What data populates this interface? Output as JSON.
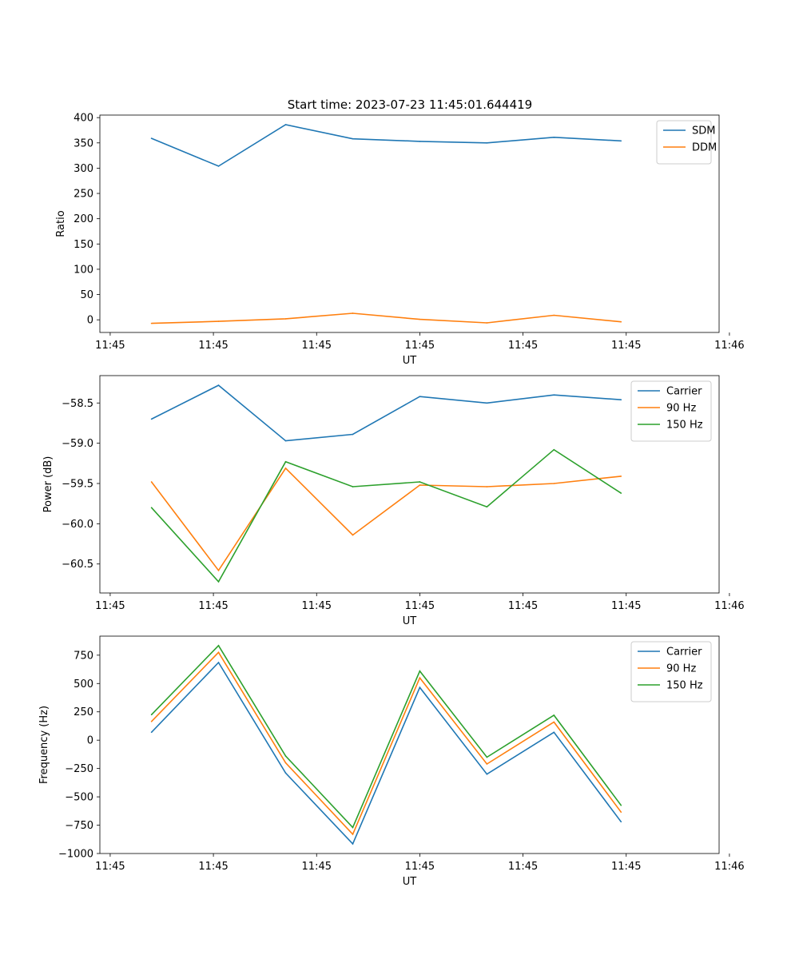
{
  "figure_title": "Start time: 2023-07-23 11:45:01.644419",
  "colors": {
    "blue": "#1f77b4",
    "orange": "#ff7f0e",
    "green": "#2ca02c"
  },
  "chart_data": [
    {
      "type": "line",
      "xlabel": "UT",
      "ylabel": "Ratio",
      "x": [
        0.4,
        0.53,
        0.66,
        0.79,
        0.92,
        1.05,
        1.18,
        1.31
      ],
      "xlim": [
        0.3,
        1.5
      ],
      "xticks": [
        0.32,
        0.52,
        0.72,
        0.92,
        1.12,
        1.32,
        1.52
      ],
      "xtick_labels": [
        "11:45",
        "11:45",
        "11:45",
        "11:45",
        "11:45",
        "11:45",
        "11:46"
      ],
      "ylim": [
        -25,
        405
      ],
      "yticks": [
        0,
        50,
        100,
        150,
        200,
        250,
        300,
        350,
        400
      ],
      "ytick_labels": [
        "0",
        "50",
        "100",
        "150",
        "200",
        "250",
        "300",
        "350",
        "400"
      ],
      "legend": "top-right",
      "series": [
        {
          "name": "SDM",
          "color": "#1f77b4",
          "values": [
            359,
            304,
            386,
            358,
            353,
            350,
            361,
            354
          ]
        },
        {
          "name": "DDM",
          "color": "#ff7f0e",
          "values": [
            -7,
            -3,
            2,
            13,
            1,
            -6,
            9,
            -4
          ]
        }
      ]
    },
    {
      "type": "line",
      "xlabel": "UT",
      "ylabel": "Power (dB)",
      "x": [
        0.4,
        0.53,
        0.66,
        0.79,
        0.92,
        1.05,
        1.18,
        1.31
      ],
      "xlim": [
        0.3,
        1.5
      ],
      "xticks": [
        0.32,
        0.52,
        0.72,
        0.92,
        1.12,
        1.32,
        1.52
      ],
      "xtick_labels": [
        "11:45",
        "11:45",
        "11:45",
        "11:45",
        "11:45",
        "11:45",
        "11:46"
      ],
      "ylim": [
        -60.86,
        -58.16
      ],
      "yticks": [
        -60.5,
        -60.0,
        -59.5,
        -59.0,
        -58.5
      ],
      "ytick_labels": [
        "−60.5",
        "−60.0",
        "−59.5",
        "−59.0",
        "−58.5"
      ],
      "legend": "top-right",
      "series": [
        {
          "name": "Carrier",
          "color": "#1f77b4",
          "values": [
            -58.7,
            -58.28,
            -58.97,
            -58.89,
            -58.42,
            -58.5,
            -58.4,
            -58.46
          ]
        },
        {
          "name": "90 Hz",
          "color": "#ff7f0e",
          "values": [
            -59.48,
            -60.58,
            -59.31,
            -60.14,
            -59.52,
            -59.54,
            -59.5,
            -59.41
          ]
        },
        {
          "name": "150 Hz",
          "color": "#2ca02c",
          "values": [
            -59.8,
            -60.72,
            -59.23,
            -59.54,
            -59.48,
            -59.79,
            -59.08,
            -59.62
          ]
        }
      ]
    },
    {
      "type": "line",
      "xlabel": "UT",
      "ylabel": "Frequency (Hz)",
      "x": [
        0.4,
        0.53,
        0.66,
        0.79,
        0.92,
        1.05,
        1.18,
        1.31
      ],
      "xlim": [
        0.3,
        1.5
      ],
      "xticks": [
        0.32,
        0.52,
        0.72,
        0.92,
        1.12,
        1.32,
        1.52
      ],
      "xtick_labels": [
        "11:45",
        "11:45",
        "11:45",
        "11:45",
        "11:45",
        "11:45",
        "11:46"
      ],
      "ylim": [
        -1000,
        918
      ],
      "yticks": [
        -1000,
        -750,
        -500,
        -250,
        0,
        250,
        500,
        750
      ],
      "ytick_labels": [
        "−1000",
        "−750",
        "−500",
        "−250",
        "0",
        "250",
        "500",
        "750"
      ],
      "legend": "top-right",
      "series": [
        {
          "name": "Carrier",
          "color": "#1f77b4",
          "values": [
            70,
            685,
            -290,
            -915,
            465,
            -300,
            70,
            -720
          ]
        },
        {
          "name": "90 Hz",
          "color": "#ff7f0e",
          "values": [
            165,
            775,
            -200,
            -830,
            550,
            -210,
            160,
            -635
          ]
        },
        {
          "name": "150 Hz",
          "color": "#2ca02c",
          "values": [
            225,
            835,
            -140,
            -770,
            610,
            -150,
            220,
            -575
          ]
        }
      ]
    }
  ]
}
